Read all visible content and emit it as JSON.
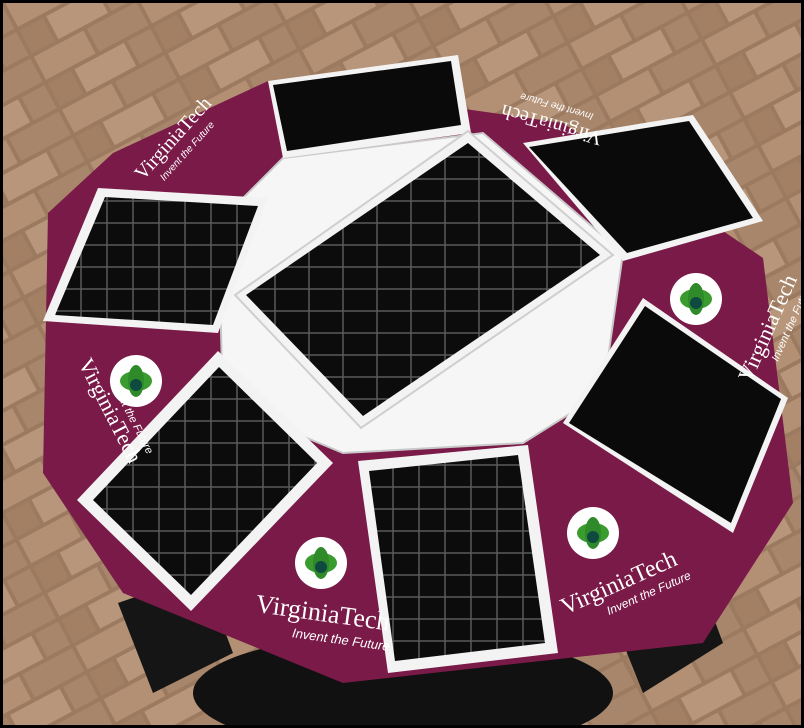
{
  "scene": {
    "description_hidden": "",
    "brand": {
      "name": "VirginiaTech",
      "tagline": "Invent the Future",
      "mark": "®"
    },
    "colors": {
      "maroon": "#7a1a48",
      "panel_black": "#0d0d0d",
      "paving_light": "#b08a6e",
      "paving_dark": "#8a6a52",
      "frame_white": "#f3f3f3",
      "logo_green": "#2f8a2a"
    },
    "icons": [
      "solar-panel-icon",
      "green-leaf-logo-icon",
      "vt-shield-icon"
    ]
  }
}
